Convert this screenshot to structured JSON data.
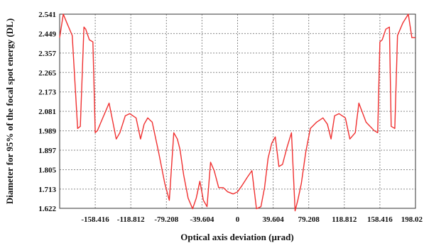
{
  "chart_data": {
    "type": "line",
    "title": "",
    "xlabel": "Optical axis deviation (μrad)",
    "ylabel": "Diameter for 95% of the focal spot energy (DL)",
    "xlim": [
      -198.02,
      198.02
    ],
    "ylim": [
      1.622,
      2.541
    ],
    "grid": true,
    "legend": "none",
    "x_ticks": [
      -158.416,
      -118.812,
      -79.208,
      -39.604,
      0,
      39.604,
      79.208,
      118.812,
      158.416,
      198.02
    ],
    "x_tick_labels": [
      "-158.416",
      "-118.812",
      "-79.208",
      "-39.604",
      "0",
      "39.604",
      "79.208",
      "118.812",
      "158.416",
      "198.02"
    ],
    "y_ticks": [
      1.622,
      1.713,
      1.805,
      1.897,
      1.989,
      2.081,
      2.173,
      2.265,
      2.357,
      2.449,
      2.541
    ],
    "y_tick_labels": [
      "1.622",
      "1.713",
      "1.805",
      "1.897",
      "1.989",
      "2.081",
      "2.173",
      "2.265",
      "2.357",
      "2.449",
      "2.541"
    ],
    "colors": {
      "line": "#f03030",
      "grid": "#8a8a8a",
      "frame": "#333333"
    },
    "series": [
      {
        "name": "",
        "x": [
          -198.02,
          -194,
          -190,
          -184,
          -178,
          -175,
          -171,
          -169,
          -165,
          -161,
          -158.4,
          -156,
          -152,
          -143,
          -135,
          -131,
          -125,
          -120,
          -113,
          -108,
          -104,
          -100,
          -95,
          -88,
          -81,
          -76,
          -71,
          -67,
          -64,
          -60,
          -55,
          -50,
          -46,
          -42,
          -38,
          -34,
          -30,
          -26,
          -21,
          -16,
          -11,
          -5,
          0,
          5,
          11,
          16,
          21,
          26,
          30,
          34,
          38,
          42,
          46,
          50,
          55,
          60,
          64,
          67,
          71,
          76,
          81,
          88,
          95,
          100,
          104,
          108,
          113,
          120,
          125,
          131,
          135,
          143,
          152,
          156,
          158.4,
          161,
          165,
          169,
          171,
          175,
          178,
          184,
          190,
          194,
          198.02
        ],
        "y": [
          2.43,
          2.541,
          2.5,
          2.44,
          2.0,
          2.01,
          2.48,
          2.47,
          2.42,
          2.41,
          1.98,
          1.99,
          2.03,
          2.12,
          1.95,
          1.98,
          2.06,
          2.07,
          2.05,
          1.95,
          2.02,
          2.05,
          2.03,
          1.89,
          1.74,
          1.66,
          1.98,
          1.95,
          1.9,
          1.78,
          1.67,
          1.62,
          1.67,
          1.75,
          1.66,
          1.63,
          1.84,
          1.8,
          1.72,
          1.72,
          1.7,
          1.69,
          1.7,
          1.73,
          1.77,
          1.8,
          1.62,
          1.63,
          1.72,
          1.86,
          1.93,
          1.96,
          1.82,
          1.83,
          1.91,
          1.98,
          1.61,
          1.66,
          1.74,
          1.89,
          2.0,
          2.03,
          2.05,
          2.02,
          1.95,
          2.06,
          2.07,
          2.05,
          1.95,
          1.98,
          2.12,
          2.03,
          1.99,
          1.98,
          2.41,
          2.42,
          2.47,
          2.48,
          2.01,
          2.0,
          2.44,
          2.5,
          2.541,
          2.43,
          2.43
        ]
      }
    ]
  }
}
